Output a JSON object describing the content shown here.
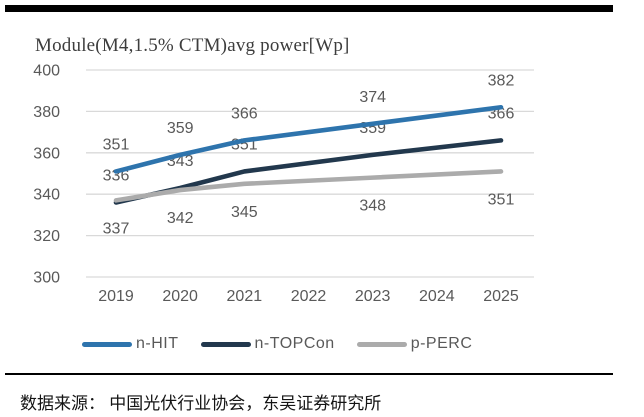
{
  "title": "Module(M4,1.5% CTM)avg power[Wp]",
  "source_note": "数据来源： 中国光伏行业协会，东吴证券研究所",
  "colors": {
    "n_hit": "#2e74ad",
    "n_topcon": "#22384d",
    "p_perc": "#ababab",
    "gridline": "#d9d9d9",
    "axis_text": "#595959",
    "title_text": "#3d3d3d",
    "rule": "#000000"
  },
  "chart_data": {
    "type": "line",
    "title": "Module(M4,1.5% CTM)avg power[Wp]",
    "xlabel": "",
    "ylabel": "",
    "x_categories": [
      "2019",
      "2020",
      "2021",
      "2022",
      "2023",
      "2024",
      "2025"
    ],
    "y_ticks": [
      300,
      320,
      340,
      360,
      380,
      400
    ],
    "ylim": [
      300,
      400
    ],
    "grid": "horizontal",
    "legend_position": "bottom",
    "series": [
      {
        "name": "n-HIT",
        "color": "#2e74ad",
        "label_side": "above",
        "points": [
          {
            "x": "2019",
            "y": 351
          },
          {
            "x": "2020",
            "y": 359
          },
          {
            "x": "2021",
            "y": 366
          },
          {
            "x": "2023",
            "y": 374
          },
          {
            "x": "2025",
            "y": 382
          }
        ]
      },
      {
        "name": "n-TOPCon",
        "color": "#22384d",
        "label_side": "above",
        "points": [
          {
            "x": "2019",
            "y": 336
          },
          {
            "x": "2020",
            "y": 343
          },
          {
            "x": "2021",
            "y": 351
          },
          {
            "x": "2023",
            "y": 359
          },
          {
            "x": "2025",
            "y": 366
          }
        ]
      },
      {
        "name": "p-PERC",
        "color": "#ababab",
        "label_side": "below",
        "points": [
          {
            "x": "2019",
            "y": 337
          },
          {
            "x": "2020",
            "y": 342
          },
          {
            "x": "2021",
            "y": 345
          },
          {
            "x": "2023",
            "y": 348
          },
          {
            "x": "2025",
            "y": 351
          }
        ]
      }
    ]
  }
}
